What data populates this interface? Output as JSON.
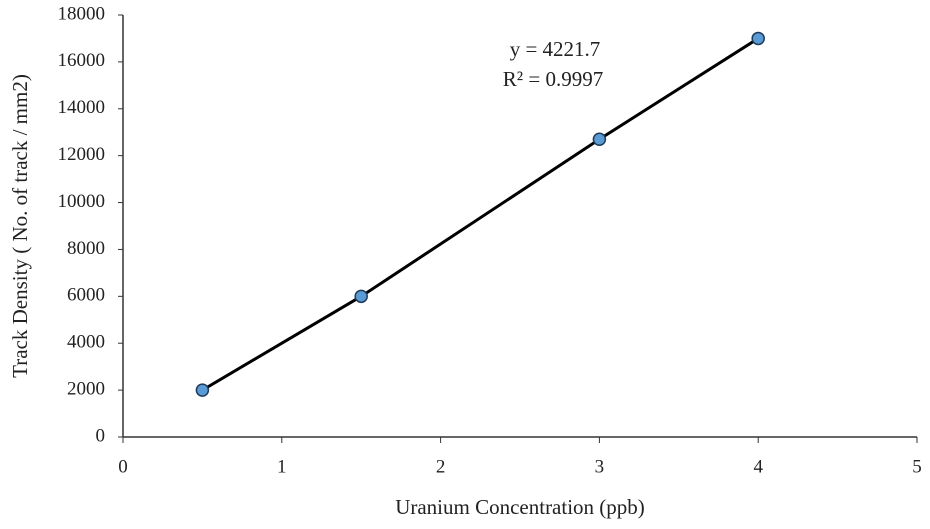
{
  "chart_data": {
    "type": "scatter",
    "x_label": "Uranium Concentration (ppb)",
    "y_label": "Track Density ( No. of track / mm2)",
    "annotations": [
      "y = 4221.7",
      "R² = 0.9997"
    ],
    "x": [
      0.5,
      1.5,
      3,
      4
    ],
    "values": [
      2000,
      6000,
      12700,
      17000
    ],
    "color": "#5b9bd5",
    "line_color": "#000000",
    "line": true,
    "xlim": [
      0,
      5
    ],
    "xticks": [
      0,
      1,
      2,
      3,
      4,
      5
    ],
    "ylim": [
      0,
      18000
    ],
    "yticks": [
      0,
      2000,
      4000,
      6000,
      8000,
      10000,
      12000,
      14000,
      16000,
      18000
    ],
    "grid": false
  }
}
